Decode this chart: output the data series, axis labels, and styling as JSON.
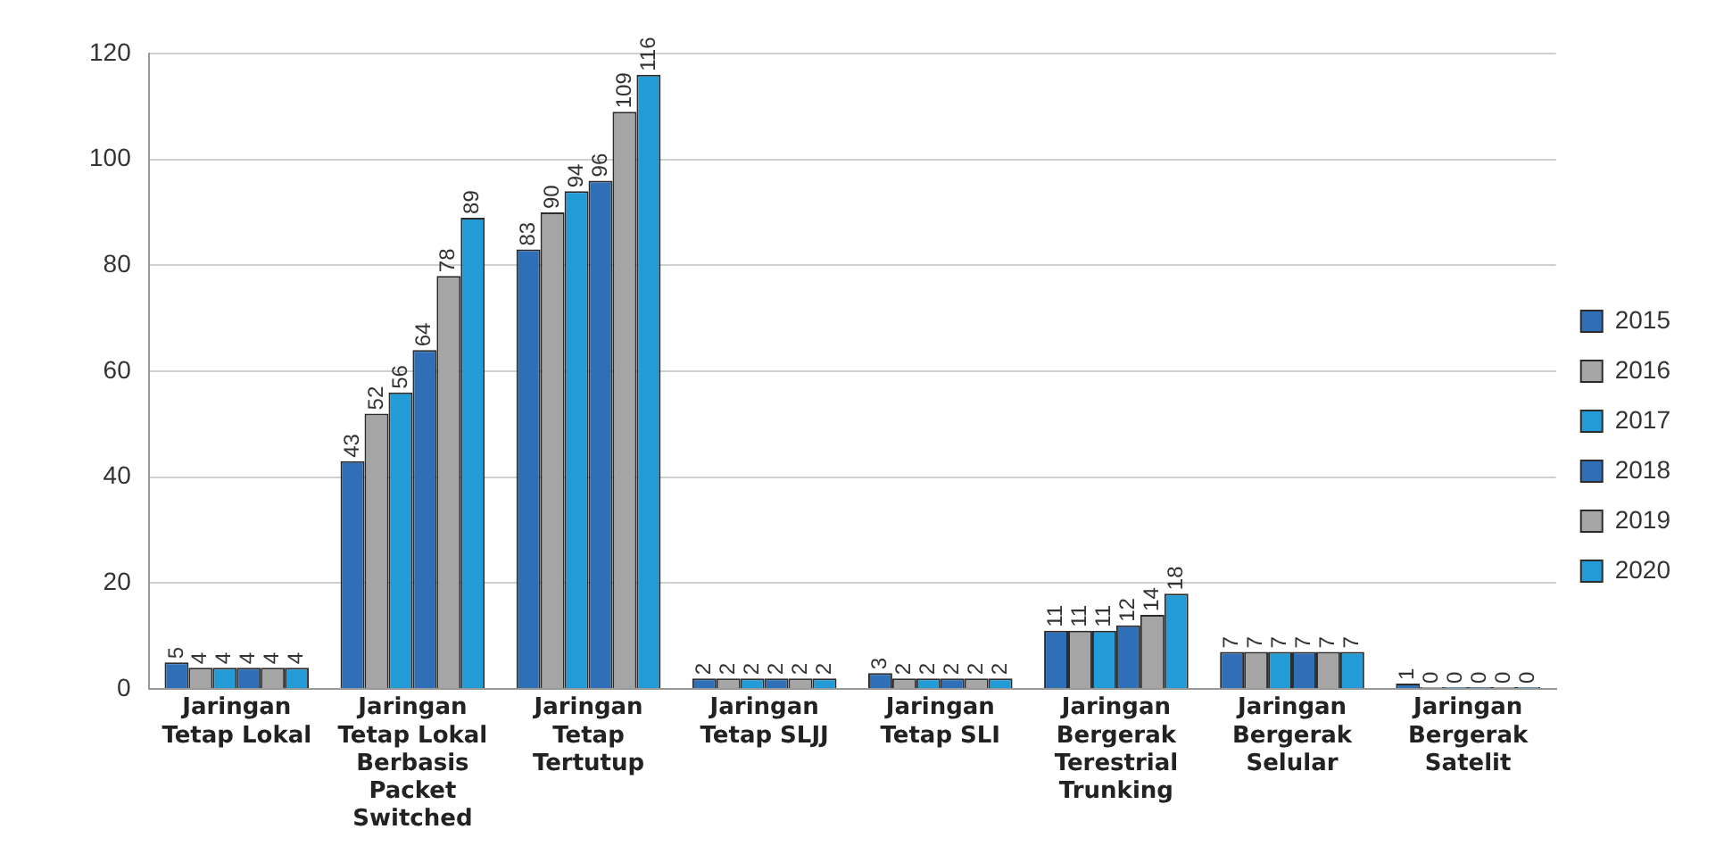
{
  "chart_data": {
    "type": "bar",
    "categories": [
      "Jaringan Tetap Lokal",
      "Jaringan Tetap Lokal Berbasis Packet Switched",
      "Jaringan Tetap Tertutup",
      "Jaringan Tetap SLJJ",
      "Jaringan Tetap SLI",
      "Jaringan Bergerak Terestrial Trunking",
      "Jaringan Bergerak Selular",
      "Jaringan Bergerak Satelit"
    ],
    "series": [
      {
        "name": "2015",
        "color": "#2e6fb7",
        "values": [
          5,
          43,
          83,
          2,
          3,
          11,
          7,
          1
        ]
      },
      {
        "name": "2016",
        "color": "#a5a5a5",
        "values": [
          4,
          52,
          90,
          2,
          2,
          11,
          7,
          0
        ]
      },
      {
        "name": "2017",
        "color": "#229bd6",
        "values": [
          4,
          56,
          94,
          2,
          2,
          11,
          7,
          0
        ]
      },
      {
        "name": "2018",
        "color": "#2e6fb7",
        "values": [
          4,
          64,
          96,
          2,
          2,
          12,
          7,
          0
        ]
      },
      {
        "name": "2019",
        "color": "#a5a5a5",
        "values": [
          4,
          78,
          109,
          2,
          2,
          14,
          7,
          0
        ]
      },
      {
        "name": "2020",
        "color": "#229bd6",
        "values": [
          4,
          89,
          116,
          2,
          2,
          18,
          7,
          0
        ]
      }
    ],
    "ylim": [
      0,
      120
    ],
    "yticks": [
      0,
      20,
      40,
      60,
      80,
      100,
      120
    ],
    "grid": "y",
    "legend": "right",
    "data_labels": true
  }
}
